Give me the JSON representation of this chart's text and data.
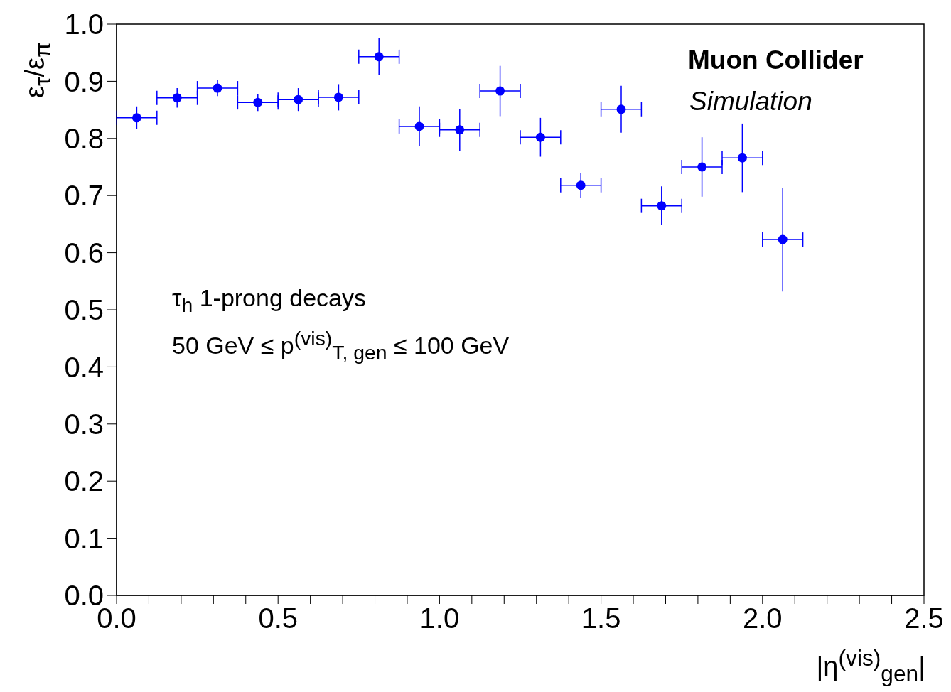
{
  "chart_data": {
    "type": "scatter",
    "xlabel": "|η$^{(vis)}$$_{gen}$|",
    "ylabel": "ε$_{τ}$/ε$_{π}$",
    "x": [
      0.0625,
      0.1875,
      0.3125,
      0.4375,
      0.5625,
      0.6875,
      0.8125,
      0.9375,
      1.0625,
      1.1875,
      1.3125,
      1.4375,
      1.5625,
      1.6875,
      1.8125,
      1.9375,
      2.0625
    ],
    "series": [
      {
        "color": "#0000ff",
        "values": [
          0.836,
          0.871,
          0.888,
          0.863,
          0.868,
          0.872,
          0.943,
          0.821,
          0.815,
          0.883,
          0.802,
          0.718,
          0.851,
          0.682,
          0.75,
          0.766,
          0.623
        ],
        "errors": [
          0.02,
          0.017,
          0.014,
          0.015,
          0.02,
          0.023,
          0.032,
          0.035,
          0.037,
          0.044,
          0.034,
          0.022,
          0.041,
          0.034,
          0.052,
          0.06,
          0.091
        ],
        "xerrors": [
          0.0625,
          0.0625,
          0.0625,
          0.0625,
          0.0625,
          0.0625,
          0.0625,
          0.0625,
          0.0625,
          0.0625,
          0.0625,
          0.0625,
          0.0625,
          0.0625,
          0.0625,
          0.0625,
          0.0625
        ]
      }
    ],
    "xlim": [
      0,
      2.5
    ],
    "ylim": [
      0,
      1
    ],
    "xticks": [
      {
        "value": 0,
        "label": "0.0"
      },
      {
        "value": 0.1,
        "label": null
      },
      {
        "value": 0.2,
        "label": null
      },
      {
        "value": 0.3,
        "label": null
      },
      {
        "value": 0.4,
        "label": null
      },
      {
        "value": 0.5,
        "label": "0.5"
      },
      {
        "value": 0.6,
        "label": null
      },
      {
        "value": 0.7,
        "label": null
      },
      {
        "value": 0.8,
        "label": null
      },
      {
        "value": 0.9,
        "label": null
      },
      {
        "value": 1,
        "label": "1.0"
      },
      {
        "value": 1.1,
        "label": null
      },
      {
        "value": 1.2,
        "label": null
      },
      {
        "value": 1.3,
        "label": null
      },
      {
        "value": 1.4,
        "label": null
      },
      {
        "value": 1.5,
        "label": "1.5"
      },
      {
        "value": 1.6,
        "label": null
      },
      {
        "value": 1.7,
        "label": null
      },
      {
        "value": 1.8,
        "label": null
      },
      {
        "value": 1.9,
        "label": null
      },
      {
        "value": 2,
        "label": "2.0"
      },
      {
        "value": 2.1,
        "label": null
      },
      {
        "value": 2.2,
        "label": null
      },
      {
        "value": 2.3,
        "label": null
      },
      {
        "value": 2.4,
        "label": null
      },
      {
        "value": 2.5,
        "label": "2.5"
      }
    ],
    "yticks": [
      {
        "value": 0,
        "label": "0.0"
      },
      {
        "value": 0.1,
        "label": "0.1"
      },
      {
        "value": 0.2,
        "label": "0.2"
      },
      {
        "value": 0.3,
        "label": "0.3"
      },
      {
        "value": 0.4,
        "label": "0.4"
      },
      {
        "value": 0.5,
        "label": "0.5"
      },
      {
        "value": 0.6,
        "label": "0.6"
      },
      {
        "value": 0.7,
        "label": "0.7"
      },
      {
        "value": 0.8,
        "label": "0.8"
      },
      {
        "value": 0.9,
        "label": "0.9"
      },
      {
        "value": 1,
        "label": "1.0"
      }
    ],
    "annotations": [
      "Muon Collider",
      "Simulation",
      "τ$_{h}$ 1-prong decays",
      "50 GeV ≤ p$^{(vis)}$$_{T, gen}$ ≤ 100 GeV"
    ],
    "marker": "circle",
    "grid": false,
    "legend": false
  }
}
